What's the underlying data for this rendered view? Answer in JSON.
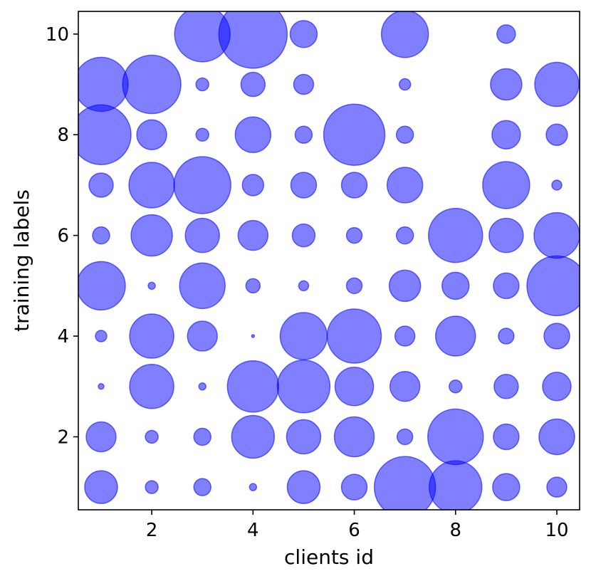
{
  "chart_data": {
    "type": "scatter",
    "xlabel": "clients id",
    "ylabel": "training labels",
    "xlim": [
      0.55,
      10.45
    ],
    "ylim": [
      0.55,
      10.45
    ],
    "xticks": [
      2,
      4,
      6,
      8,
      10
    ],
    "yticks": [
      2,
      4,
      6,
      8,
      10
    ],
    "grid": false,
    "marker_color": "#0000ff",
    "marker_alpha": 0.5,
    "size_note_unit": "relative sample count",
    "points": [
      {
        "x": 1,
        "y": 1,
        "s": 23
      },
      {
        "x": 1,
        "y": 2,
        "s": 21
      },
      {
        "x": 1,
        "y": 3,
        "s": 4
      },
      {
        "x": 1,
        "y": 4,
        "s": 8
      },
      {
        "x": 1,
        "y": 5,
        "s": 34
      },
      {
        "x": 1,
        "y": 6,
        "s": 12
      },
      {
        "x": 1,
        "y": 7,
        "s": 17
      },
      {
        "x": 1,
        "y": 8,
        "s": 42
      },
      {
        "x": 1,
        "y": 9,
        "s": 38
      },
      {
        "x": 1,
        "y": 10,
        "s": 0
      },
      {
        "x": 2,
        "y": 1,
        "s": 9
      },
      {
        "x": 2,
        "y": 2,
        "s": 9
      },
      {
        "x": 2,
        "y": 3,
        "s": 31
      },
      {
        "x": 2,
        "y": 4,
        "s": 31
      },
      {
        "x": 2,
        "y": 5,
        "s": 5
      },
      {
        "x": 2,
        "y": 6,
        "s": 29
      },
      {
        "x": 2,
        "y": 7,
        "s": 32
      },
      {
        "x": 2,
        "y": 8,
        "s": 21
      },
      {
        "x": 2,
        "y": 9,
        "s": 41
      },
      {
        "x": 2,
        "y": 10,
        "s": 0
      },
      {
        "x": 3,
        "y": 1,
        "s": 12
      },
      {
        "x": 3,
        "y": 2,
        "s": 12
      },
      {
        "x": 3,
        "y": 3,
        "s": 5
      },
      {
        "x": 3,
        "y": 4,
        "s": 21
      },
      {
        "x": 3,
        "y": 5,
        "s": 32
      },
      {
        "x": 3,
        "y": 6,
        "s": 24
      },
      {
        "x": 3,
        "y": 7,
        "s": 40
      },
      {
        "x": 3,
        "y": 8,
        "s": 9
      },
      {
        "x": 3,
        "y": 9,
        "s": 9
      },
      {
        "x": 3,
        "y": 10,
        "s": 39
      },
      {
        "x": 4,
        "y": 1,
        "s": 5
      },
      {
        "x": 4,
        "y": 2,
        "s": 30
      },
      {
        "x": 4,
        "y": 3,
        "s": 36
      },
      {
        "x": 4,
        "y": 4,
        "s": 2
      },
      {
        "x": 4,
        "y": 5,
        "s": 10
      },
      {
        "x": 4,
        "y": 6,
        "s": 21
      },
      {
        "x": 4,
        "y": 7,
        "s": 15
      },
      {
        "x": 4,
        "y": 8,
        "s": 25
      },
      {
        "x": 4,
        "y": 9,
        "s": 17
      },
      {
        "x": 4,
        "y": 10,
        "s": 48
      },
      {
        "x": 5,
        "y": 1,
        "s": 23
      },
      {
        "x": 5,
        "y": 2,
        "s": 24
      },
      {
        "x": 5,
        "y": 3,
        "s": 37
      },
      {
        "x": 5,
        "y": 4,
        "s": 33
      },
      {
        "x": 5,
        "y": 5,
        "s": 7
      },
      {
        "x": 5,
        "y": 6,
        "s": 16
      },
      {
        "x": 5,
        "y": 7,
        "s": 18
      },
      {
        "x": 5,
        "y": 8,
        "s": 12
      },
      {
        "x": 5,
        "y": 9,
        "s": 14
      },
      {
        "x": 5,
        "y": 10,
        "s": 19
      },
      {
        "x": 6,
        "y": 1,
        "s": 18
      },
      {
        "x": 6,
        "y": 2,
        "s": 28
      },
      {
        "x": 6,
        "y": 3,
        "s": 27
      },
      {
        "x": 6,
        "y": 4,
        "s": 38
      },
      {
        "x": 6,
        "y": 5,
        "s": 11
      },
      {
        "x": 6,
        "y": 6,
        "s": 11
      },
      {
        "x": 6,
        "y": 7,
        "s": 18
      },
      {
        "x": 6,
        "y": 8,
        "s": 43
      },
      {
        "x": 6,
        "y": 9,
        "s": 0
      },
      {
        "x": 6,
        "y": 10,
        "s": 0
      },
      {
        "x": 7,
        "y": 1,
        "s": 43
      },
      {
        "x": 7,
        "y": 2,
        "s": 11
      },
      {
        "x": 7,
        "y": 3,
        "s": 21
      },
      {
        "x": 7,
        "y": 4,
        "s": 14
      },
      {
        "x": 7,
        "y": 5,
        "s": 22
      },
      {
        "x": 7,
        "y": 6,
        "s": 12
      },
      {
        "x": 7,
        "y": 7,
        "s": 25
      },
      {
        "x": 7,
        "y": 8,
        "s": 12
      },
      {
        "x": 7,
        "y": 9,
        "s": 8
      },
      {
        "x": 7,
        "y": 10,
        "s": 33
      },
      {
        "x": 8,
        "y": 1,
        "s": 37
      },
      {
        "x": 8,
        "y": 2,
        "s": 39
      },
      {
        "x": 8,
        "y": 3,
        "s": 9
      },
      {
        "x": 8,
        "y": 4,
        "s": 28
      },
      {
        "x": 8,
        "y": 5,
        "s": 19
      },
      {
        "x": 8,
        "y": 6,
        "s": 38
      },
      {
        "x": 8,
        "y": 7,
        "s": 0
      },
      {
        "x": 8,
        "y": 8,
        "s": 0
      },
      {
        "x": 8,
        "y": 9,
        "s": 0
      },
      {
        "x": 8,
        "y": 10,
        "s": 0
      },
      {
        "x": 9,
        "y": 1,
        "s": 19
      },
      {
        "x": 9,
        "y": 2,
        "s": 18
      },
      {
        "x": 9,
        "y": 3,
        "s": 17
      },
      {
        "x": 9,
        "y": 4,
        "s": 11
      },
      {
        "x": 9,
        "y": 5,
        "s": 18
      },
      {
        "x": 9,
        "y": 6,
        "s": 24
      },
      {
        "x": 9,
        "y": 7,
        "s": 33
      },
      {
        "x": 9,
        "y": 8,
        "s": 20
      },
      {
        "x": 9,
        "y": 9,
        "s": 22
      },
      {
        "x": 9,
        "y": 10,
        "s": 13
      },
      {
        "x": 10,
        "y": 1,
        "s": 14
      },
      {
        "x": 10,
        "y": 2,
        "s": 25
      },
      {
        "x": 10,
        "y": 3,
        "s": 20
      },
      {
        "x": 10,
        "y": 4,
        "s": 18
      },
      {
        "x": 10,
        "y": 5,
        "s": 42
      },
      {
        "x": 10,
        "y": 6,
        "s": 32
      },
      {
        "x": 10,
        "y": 7,
        "s": 7
      },
      {
        "x": 10,
        "y": 8,
        "s": 15
      },
      {
        "x": 10,
        "y": 9,
        "s": 31
      },
      {
        "x": 10,
        "y": 10,
        "s": 0
      }
    ]
  }
}
